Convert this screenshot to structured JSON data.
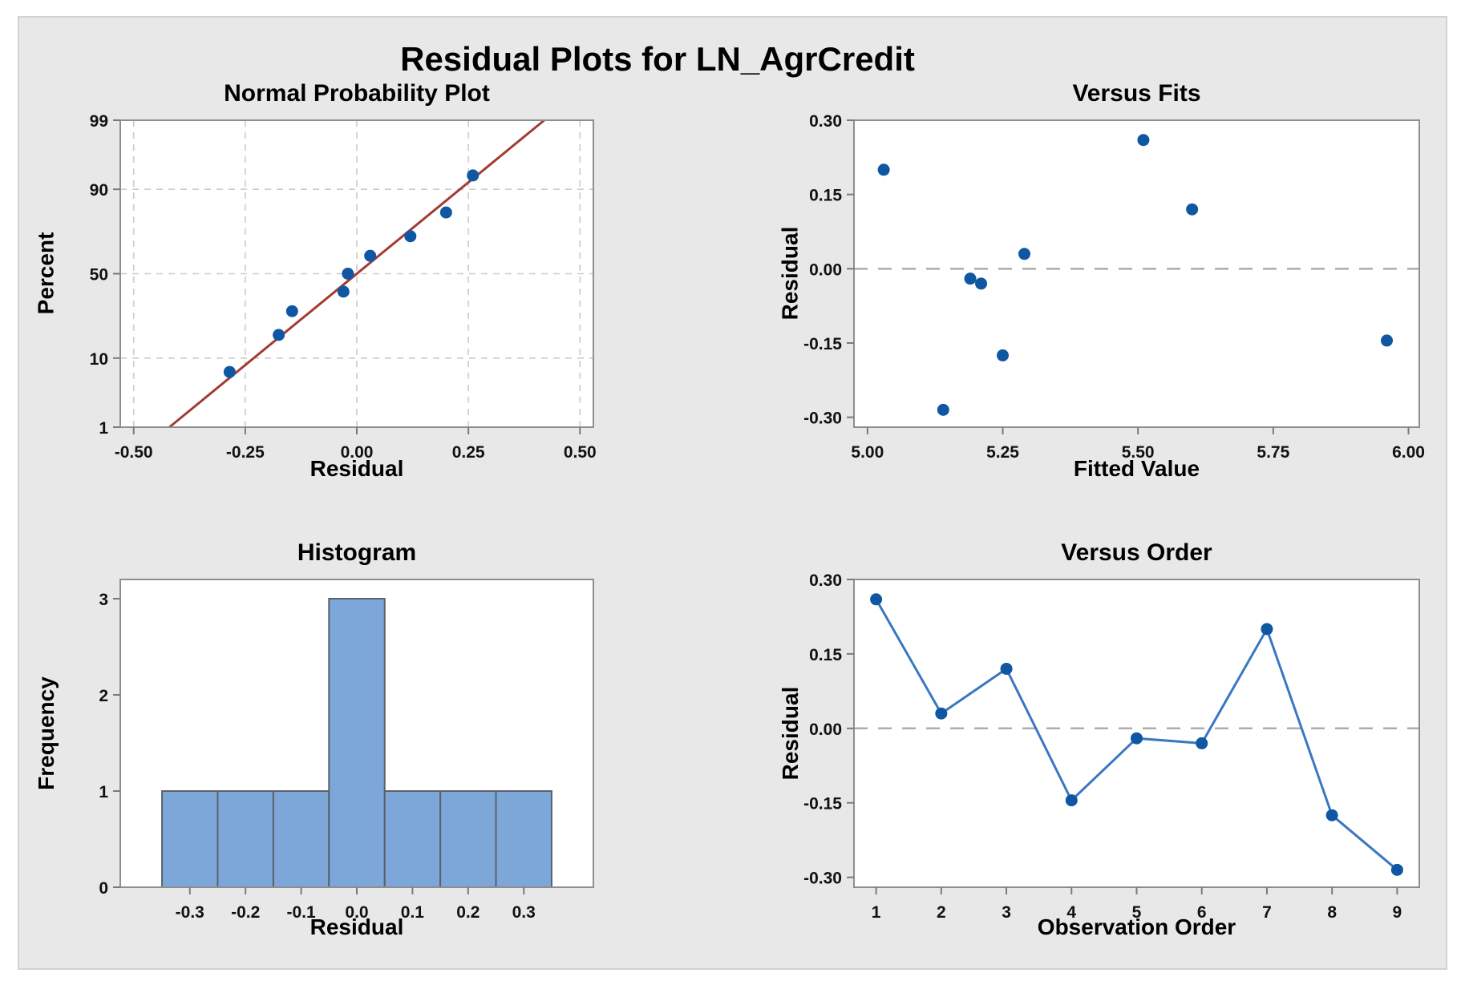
{
  "figure": {
    "title": "Residual Plots for LN_AgrCredit"
  },
  "colors": {
    "panel_bg": "#e8e8e8",
    "panel_border": "#d2d2d2",
    "plot_bg": "#ffffff",
    "frame": "#8e8e8e",
    "tick": "#7a7a7a",
    "grid": "#cbcbcb",
    "zero_line": "#acacac",
    "marker": "#0f57a2",
    "connect_line": "#3a77c2",
    "fit_line": "#a33b32",
    "bar_fill": "#7da7d9",
    "bar_stroke": "#59626b"
  },
  "chart_data": [
    {
      "id": "npp",
      "type": "scatter",
      "title": "Normal Probability Plot",
      "xlabel": "Residual",
      "ylabel": "Percent",
      "y_scale": "probit",
      "grid": true,
      "xlim": [
        -0.53,
        0.53
      ],
      "x_ticks": [
        -0.5,
        -0.25,
        0,
        0.25,
        0.5
      ],
      "x_tick_labels": [
        "-0.50",
        "-0.25",
        "0.00",
        "0.25",
        "0.50"
      ],
      "y_ticks": [
        1,
        10,
        50,
        90,
        99
      ],
      "y_tick_labels": [
        "1",
        "10",
        "50",
        "90",
        "99"
      ],
      "points": [
        [
          -0.285,
          6.8
        ],
        [
          -0.175,
          17.6
        ],
        [
          -0.145,
          28.4
        ],
        [
          -0.03,
          39.2
        ],
        [
          -0.02,
          50
        ],
        [
          0.03,
          60.8
        ],
        [
          0.12,
          71.6
        ],
        [
          0.2,
          82.4
        ],
        [
          0.26,
          93.2
        ]
      ],
      "fit_line": {
        "x1": -0.42,
        "p1": 1,
        "x2": 0.42,
        "p2": 99
      }
    },
    {
      "id": "fits",
      "type": "scatter",
      "title": "Versus Fits",
      "xlabel": "Fitted Value",
      "ylabel": "Residual",
      "zero_line": true,
      "xlim": [
        4.975,
        6.02
      ],
      "ylim": [
        -0.32,
        0.3
      ],
      "x_ticks": [
        5,
        5.25,
        5.5,
        5.75,
        6
      ],
      "x_tick_labels": [
        "5.00",
        "5.25",
        "5.50",
        "5.75",
        "6.00"
      ],
      "y_ticks": [
        0.3,
        0.15,
        0,
        -0.15,
        -0.3
      ],
      "y_tick_labels": [
        "0.30",
        "0.15",
        "0.00",
        "-0.15",
        "-0.30"
      ],
      "points": [
        [
          5.51,
          0.26
        ],
        [
          5.29,
          0.03
        ],
        [
          5.6,
          0.12
        ],
        [
          5.96,
          -0.145
        ],
        [
          5.19,
          -0.02
        ],
        [
          5.21,
          -0.03
        ],
        [
          5.03,
          0.2
        ],
        [
          5.25,
          -0.175
        ],
        [
          5.14,
          -0.285
        ]
      ]
    },
    {
      "id": "hist",
      "type": "bar",
      "title": "Histogram",
      "xlabel": "Residual",
      "ylabel": "Frequency",
      "xlim": [
        -0.425,
        0.425
      ],
      "ylim": [
        0,
        3.2
      ],
      "bin_edges": [
        -0.35,
        -0.25,
        -0.15,
        -0.05,
        0.05,
        0.15,
        0.25,
        0.35
      ],
      "frequencies": [
        1,
        1,
        1,
        3,
        1,
        1,
        1
      ],
      "x_ticks": [
        -0.3,
        -0.2,
        -0.1,
        0,
        0.1,
        0.2,
        0.3
      ],
      "x_tick_labels": [
        "-0.3",
        "-0.2",
        "-0.1",
        "0.0",
        "0.1",
        "0.2",
        "0.3"
      ],
      "y_ticks": [
        0,
        1,
        2,
        3
      ],
      "y_tick_labels": [
        "0",
        "1",
        "2",
        "3"
      ]
    },
    {
      "id": "order",
      "type": "line",
      "title": "Versus Order",
      "xlabel": "Observation Order",
      "ylabel": "Residual",
      "zero_line": true,
      "xlim": [
        0.66,
        9.34
      ],
      "ylim": [
        -0.32,
        0.3
      ],
      "x_ticks": [
        1,
        2,
        3,
        4,
        5,
        6,
        7,
        8,
        9
      ],
      "x_tick_labels": [
        "1",
        "2",
        "3",
        "4",
        "5",
        "6",
        "7",
        "8",
        "9"
      ],
      "y_ticks": [
        0.3,
        0.15,
        0,
        -0.15,
        -0.3
      ],
      "y_tick_labels": [
        "0.30",
        "0.15",
        "0.00",
        "-0.15",
        "-0.30"
      ],
      "points": [
        [
          1,
          0.26
        ],
        [
          2,
          0.03
        ],
        [
          3,
          0.12
        ],
        [
          4,
          -0.145
        ],
        [
          5,
          -0.02
        ],
        [
          6,
          -0.03
        ],
        [
          7,
          0.2
        ],
        [
          8,
          -0.175
        ],
        [
          9,
          -0.285
        ]
      ]
    }
  ]
}
